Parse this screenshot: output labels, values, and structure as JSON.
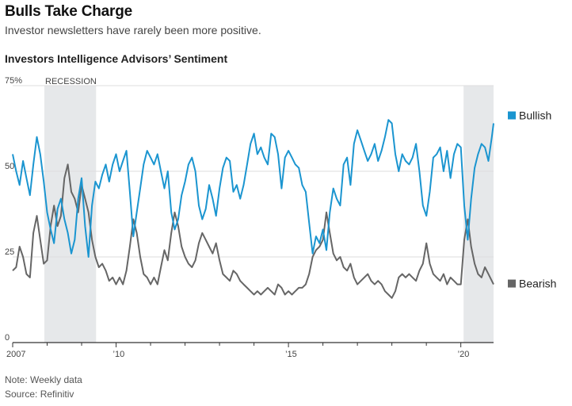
{
  "headline": "Bulls Take Charge",
  "dek": "Investor newsletters have rarely been more positive.",
  "chart_title": "Investors Intelligence Advisors’ Sentiment",
  "note": "Note: Weekly data",
  "source": "Source: Refinitiv",
  "colors": {
    "bullish": "#1b95d0",
    "bearish": "#666666",
    "recession": "#e6e8ea",
    "grid": "#dddddd"
  },
  "chart_data": {
    "type": "line",
    "title": "Investors Intelligence Advisors’ Sentiment",
    "xlabel": "",
    "ylabel": "",
    "xlim": [
      2007.0,
      2020.95
    ],
    "ylim": [
      0,
      75
    ],
    "grid": true,
    "legend": "right, at line ends",
    "y_ticks": [
      {
        "value": 75,
        "label": "75%"
      },
      {
        "value": 50,
        "label": "50"
      },
      {
        "value": 25,
        "label": "25"
      },
      {
        "value": 0,
        "label": "0"
      }
    ],
    "x_ticks": [
      {
        "value": 2007,
        "label": "2007"
      },
      {
        "value": 2010,
        "label": "’10"
      },
      {
        "value": 2015,
        "label": "’15"
      },
      {
        "value": 2020,
        "label": "’20"
      }
    ],
    "shaded_periods": [
      {
        "start": 2007.92,
        "end": 2009.42,
        "label": "RECESSION"
      },
      {
        "start": 2020.08,
        "end": 2020.95,
        "label": ""
      }
    ],
    "series": [
      {
        "name": "Bullish",
        "points": [
          [
            2007.0,
            55
          ],
          [
            2007.1,
            50
          ],
          [
            2007.2,
            46
          ],
          [
            2007.3,
            53
          ],
          [
            2007.4,
            48
          ],
          [
            2007.5,
            43
          ],
          [
            2007.6,
            52
          ],
          [
            2007.7,
            60
          ],
          [
            2007.8,
            55
          ],
          [
            2007.9,
            47
          ],
          [
            2008.0,
            38
          ],
          [
            2008.1,
            33
          ],
          [
            2008.2,
            29
          ],
          [
            2008.3,
            39
          ],
          [
            2008.4,
            42
          ],
          [
            2008.5,
            36
          ],
          [
            2008.6,
            32
          ],
          [
            2008.7,
            26
          ],
          [
            2008.8,
            30
          ],
          [
            2008.9,
            42
          ],
          [
            2009.0,
            48
          ],
          [
            2009.1,
            34
          ],
          [
            2009.2,
            25
          ],
          [
            2009.3,
            40
          ],
          [
            2009.4,
            47
          ],
          [
            2009.5,
            45
          ],
          [
            2009.6,
            49
          ],
          [
            2009.7,
            52
          ],
          [
            2009.8,
            47
          ],
          [
            2009.9,
            52
          ],
          [
            2010.0,
            55
          ],
          [
            2010.1,
            50
          ],
          [
            2010.2,
            53
          ],
          [
            2010.3,
            56
          ],
          [
            2010.4,
            44
          ],
          [
            2010.5,
            31
          ],
          [
            2010.6,
            38
          ],
          [
            2010.7,
            45
          ],
          [
            2010.8,
            52
          ],
          [
            2010.9,
            56
          ],
          [
            2011.0,
            54
          ],
          [
            2011.1,
            52
          ],
          [
            2011.2,
            55
          ],
          [
            2011.3,
            50
          ],
          [
            2011.4,
            45
          ],
          [
            2011.5,
            50
          ],
          [
            2011.6,
            38
          ],
          [
            2011.7,
            33
          ],
          [
            2011.8,
            36
          ],
          [
            2011.9,
            43
          ],
          [
            2012.0,
            47
          ],
          [
            2012.1,
            52
          ],
          [
            2012.2,
            54
          ],
          [
            2012.3,
            50
          ],
          [
            2012.4,
            40
          ],
          [
            2012.5,
            36
          ],
          [
            2012.6,
            39
          ],
          [
            2012.7,
            46
          ],
          [
            2012.8,
            42
          ],
          [
            2012.9,
            37
          ],
          [
            2013.0,
            45
          ],
          [
            2013.1,
            51
          ],
          [
            2013.2,
            54
          ],
          [
            2013.3,
            53
          ],
          [
            2013.4,
            44
          ],
          [
            2013.5,
            46
          ],
          [
            2013.6,
            42
          ],
          [
            2013.7,
            46
          ],
          [
            2013.8,
            52
          ],
          [
            2013.9,
            58
          ],
          [
            2014.0,
            61
          ],
          [
            2014.1,
            55
          ],
          [
            2014.2,
            57
          ],
          [
            2014.3,
            54
          ],
          [
            2014.4,
            52
          ],
          [
            2014.5,
            61
          ],
          [
            2014.6,
            60
          ],
          [
            2014.7,
            55
          ],
          [
            2014.8,
            45
          ],
          [
            2014.9,
            54
          ],
          [
            2015.0,
            56
          ],
          [
            2015.1,
            54
          ],
          [
            2015.2,
            52
          ],
          [
            2015.3,
            51
          ],
          [
            2015.4,
            46
          ],
          [
            2015.5,
            44
          ],
          [
            2015.6,
            35
          ],
          [
            2015.7,
            26
          ],
          [
            2015.8,
            31
          ],
          [
            2015.9,
            29
          ],
          [
            2016.0,
            33
          ],
          [
            2016.1,
            27
          ],
          [
            2016.2,
            38
          ],
          [
            2016.3,
            45
          ],
          [
            2016.4,
            42
          ],
          [
            2016.5,
            40
          ],
          [
            2016.6,
            52
          ],
          [
            2016.7,
            54
          ],
          [
            2016.8,
            46
          ],
          [
            2016.9,
            58
          ],
          [
            2017.0,
            62
          ],
          [
            2017.1,
            59
          ],
          [
            2017.2,
            56
          ],
          [
            2017.3,
            53
          ],
          [
            2017.4,
            55
          ],
          [
            2017.5,
            58
          ],
          [
            2017.6,
            53
          ],
          [
            2017.7,
            56
          ],
          [
            2017.8,
            60
          ],
          [
            2017.9,
            65
          ],
          [
            2018.0,
            64
          ],
          [
            2018.1,
            55
          ],
          [
            2018.2,
            50
          ],
          [
            2018.3,
            55
          ],
          [
            2018.4,
            53
          ],
          [
            2018.5,
            52
          ],
          [
            2018.6,
            54
          ],
          [
            2018.7,
            58
          ],
          [
            2018.8,
            50
          ],
          [
            2018.9,
            40
          ],
          [
            2019.0,
            37
          ],
          [
            2019.1,
            44
          ],
          [
            2019.2,
            54
          ],
          [
            2019.3,
            55
          ],
          [
            2019.4,
            57
          ],
          [
            2019.5,
            50
          ],
          [
            2019.6,
            56
          ],
          [
            2019.7,
            48
          ],
          [
            2019.8,
            55
          ],
          [
            2019.9,
            58
          ],
          [
            2020.0,
            57
          ],
          [
            2020.1,
            40
          ],
          [
            2020.2,
            30
          ],
          [
            2020.3,
            42
          ],
          [
            2020.4,
            51
          ],
          [
            2020.5,
            55
          ],
          [
            2020.6,
            58
          ],
          [
            2020.7,
            57
          ],
          [
            2020.8,
            53
          ],
          [
            2020.9,
            60
          ],
          [
            2020.95,
            64
          ]
        ]
      },
      {
        "name": "Bearish",
        "points": [
          [
            2007.0,
            21
          ],
          [
            2007.1,
            22
          ],
          [
            2007.2,
            28
          ],
          [
            2007.3,
            25
          ],
          [
            2007.4,
            20
          ],
          [
            2007.5,
            19
          ],
          [
            2007.6,
            32
          ],
          [
            2007.7,
            37
          ],
          [
            2007.8,
            30
          ],
          [
            2007.9,
            23
          ],
          [
            2008.0,
            24
          ],
          [
            2008.1,
            34
          ],
          [
            2008.2,
            40
          ],
          [
            2008.3,
            34
          ],
          [
            2008.4,
            37
          ],
          [
            2008.5,
            48
          ],
          [
            2008.6,
            52
          ],
          [
            2008.7,
            44
          ],
          [
            2008.8,
            42
          ],
          [
            2008.9,
            38
          ],
          [
            2009.0,
            46
          ],
          [
            2009.1,
            42
          ],
          [
            2009.2,
            38
          ],
          [
            2009.3,
            30
          ],
          [
            2009.4,
            25
          ],
          [
            2009.5,
            22
          ],
          [
            2009.6,
            23
          ],
          [
            2009.7,
            21
          ],
          [
            2009.8,
            18
          ],
          [
            2009.9,
            19
          ],
          [
            2010.0,
            17
          ],
          [
            2010.1,
            19
          ],
          [
            2010.2,
            17
          ],
          [
            2010.3,
            21
          ],
          [
            2010.4,
            28
          ],
          [
            2010.5,
            36
          ],
          [
            2010.6,
            32
          ],
          [
            2010.7,
            25
          ],
          [
            2010.8,
            20
          ],
          [
            2010.9,
            19
          ],
          [
            2011.0,
            17
          ],
          [
            2011.1,
            19
          ],
          [
            2011.2,
            17
          ],
          [
            2011.3,
            22
          ],
          [
            2011.4,
            27
          ],
          [
            2011.5,
            24
          ],
          [
            2011.6,
            32
          ],
          [
            2011.7,
            38
          ],
          [
            2011.8,
            34
          ],
          [
            2011.9,
            28
          ],
          [
            2012.0,
            25
          ],
          [
            2012.1,
            23
          ],
          [
            2012.2,
            22
          ],
          [
            2012.3,
            24
          ],
          [
            2012.4,
            29
          ],
          [
            2012.5,
            32
          ],
          [
            2012.6,
            30
          ],
          [
            2012.7,
            28
          ],
          [
            2012.8,
            26
          ],
          [
            2012.9,
            29
          ],
          [
            2013.0,
            24
          ],
          [
            2013.1,
            20
          ],
          [
            2013.2,
            19
          ],
          [
            2013.3,
            18
          ],
          [
            2013.4,
            21
          ],
          [
            2013.5,
            20
          ],
          [
            2013.6,
            18
          ],
          [
            2013.7,
            17
          ],
          [
            2013.8,
            16
          ],
          [
            2013.9,
            15
          ],
          [
            2014.0,
            14
          ],
          [
            2014.1,
            15
          ],
          [
            2014.2,
            14
          ],
          [
            2014.3,
            15
          ],
          [
            2014.4,
            16
          ],
          [
            2014.5,
            15
          ],
          [
            2014.6,
            14
          ],
          [
            2014.7,
            17
          ],
          [
            2014.8,
            16
          ],
          [
            2014.9,
            14
          ],
          [
            2015.0,
            15
          ],
          [
            2015.1,
            14
          ],
          [
            2015.2,
            15
          ],
          [
            2015.3,
            16
          ],
          [
            2015.4,
            16
          ],
          [
            2015.5,
            17
          ],
          [
            2015.6,
            20
          ],
          [
            2015.7,
            25
          ],
          [
            2015.8,
            27
          ],
          [
            2015.9,
            28
          ],
          [
            2016.0,
            30
          ],
          [
            2016.1,
            38
          ],
          [
            2016.2,
            32
          ],
          [
            2016.3,
            26
          ],
          [
            2016.4,
            24
          ],
          [
            2016.5,
            25
          ],
          [
            2016.6,
            22
          ],
          [
            2016.7,
            21
          ],
          [
            2016.8,
            23
          ],
          [
            2016.9,
            19
          ],
          [
            2017.0,
            17
          ],
          [
            2017.1,
            18
          ],
          [
            2017.2,
            19
          ],
          [
            2017.3,
            20
          ],
          [
            2017.4,
            18
          ],
          [
            2017.5,
            17
          ],
          [
            2017.6,
            18
          ],
          [
            2017.7,
            17
          ],
          [
            2017.8,
            15
          ],
          [
            2017.9,
            14
          ],
          [
            2018.0,
            13
          ],
          [
            2018.1,
            15
          ],
          [
            2018.2,
            19
          ],
          [
            2018.3,
            20
          ],
          [
            2018.4,
            19
          ],
          [
            2018.5,
            20
          ],
          [
            2018.6,
            19
          ],
          [
            2018.7,
            18
          ],
          [
            2018.8,
            21
          ],
          [
            2018.9,
            23
          ],
          [
            2019.0,
            29
          ],
          [
            2019.1,
            23
          ],
          [
            2019.2,
            20
          ],
          [
            2019.3,
            19
          ],
          [
            2019.4,
            18
          ],
          [
            2019.5,
            20
          ],
          [
            2019.6,
            17
          ],
          [
            2019.7,
            19
          ],
          [
            2019.8,
            18
          ],
          [
            2019.9,
            17
          ],
          [
            2020.0,
            17
          ],
          [
            2020.1,
            30
          ],
          [
            2020.2,
            36
          ],
          [
            2020.3,
            28
          ],
          [
            2020.4,
            23
          ],
          [
            2020.5,
            20
          ],
          [
            2020.6,
            19
          ],
          [
            2020.7,
            22
          ],
          [
            2020.8,
            20
          ],
          [
            2020.9,
            18
          ],
          [
            2020.95,
            17
          ]
        ]
      }
    ]
  }
}
